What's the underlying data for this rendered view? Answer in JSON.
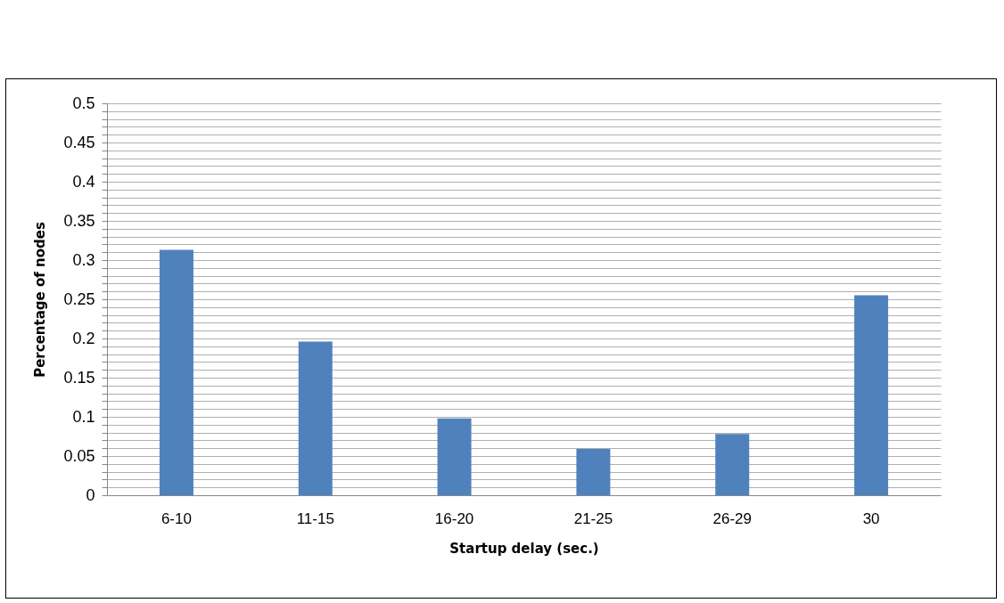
{
  "chart_data": {
    "type": "bar",
    "xlabel": "Startup delay (sec.)",
    "ylabel": "Percentage of nodes",
    "categories": [
      "6-10",
      "11-15",
      "16-20",
      "21-25",
      "26-29",
      "30"
    ],
    "values": [
      0.313,
      0.196,
      0.098,
      0.059,
      0.078,
      0.255
    ],
    "color": "#4f81bd",
    "ylim": [
      0,
      0.5
    ],
    "yticks": [
      0,
      {
        "value": 0.01,
        "label": null
      },
      {
        "value": 0.02,
        "label": null
      },
      {
        "value": 0.03,
        "label": null
      },
      {
        "value": 0.04,
        "label": null
      },
      0.05,
      {
        "value": 0.06,
        "label": null
      },
      {
        "value": 0.07,
        "label": null
      },
      {
        "value": 0.08,
        "label": null
      },
      {
        "value": 0.09,
        "label": null
      },
      0.1,
      {
        "value": 0.11,
        "label": null
      },
      {
        "value": 0.12,
        "label": null
      },
      {
        "value": 0.13,
        "label": null
      },
      {
        "value": 0.14,
        "label": null
      },
      0.15,
      {
        "value": 0.16,
        "label": null
      },
      {
        "value": 0.17,
        "label": null
      },
      {
        "value": 0.18,
        "label": null
      },
      {
        "value": 0.19,
        "label": null
      },
      0.2,
      {
        "value": 0.21,
        "label": null
      },
      {
        "value": 0.22,
        "label": null
      },
      {
        "value": 0.23,
        "label": null
      },
      {
        "value": 0.24,
        "label": null
      },
      0.25,
      {
        "value": 0.26,
        "label": null
      },
      {
        "value": 0.27,
        "label": null
      },
      {
        "value": 0.28,
        "label": null
      },
      {
        "value": 0.29,
        "label": null
      },
      0.3,
      {
        "value": 0.31,
        "label": null
      },
      {
        "value": 0.32,
        "label": null
      },
      {
        "value": 0.33,
        "label": null
      },
      {
        "value": 0.34,
        "label": null
      },
      0.35,
      {
        "value": 0.36,
        "label": null
      },
      {
        "value": 0.37,
        "label": null
      },
      {
        "value": 0.38,
        "label": null
      },
      {
        "value": 0.39,
        "label": null
      },
      0.4,
      {
        "value": 0.41,
        "label": null
      },
      {
        "value": 0.42,
        "label": null
      },
      {
        "value": 0.43,
        "label": null
      },
      {
        "value": 0.44,
        "label": null
      },
      0.45,
      {
        "value": 0.46,
        "label": null
      },
      {
        "value": 0.47,
        "label": null
      },
      {
        "value": 0.48,
        "label": null
      },
      {
        "value": 0.49,
        "label": null
      },
      0.5
    ],
    "grid": "y"
  }
}
